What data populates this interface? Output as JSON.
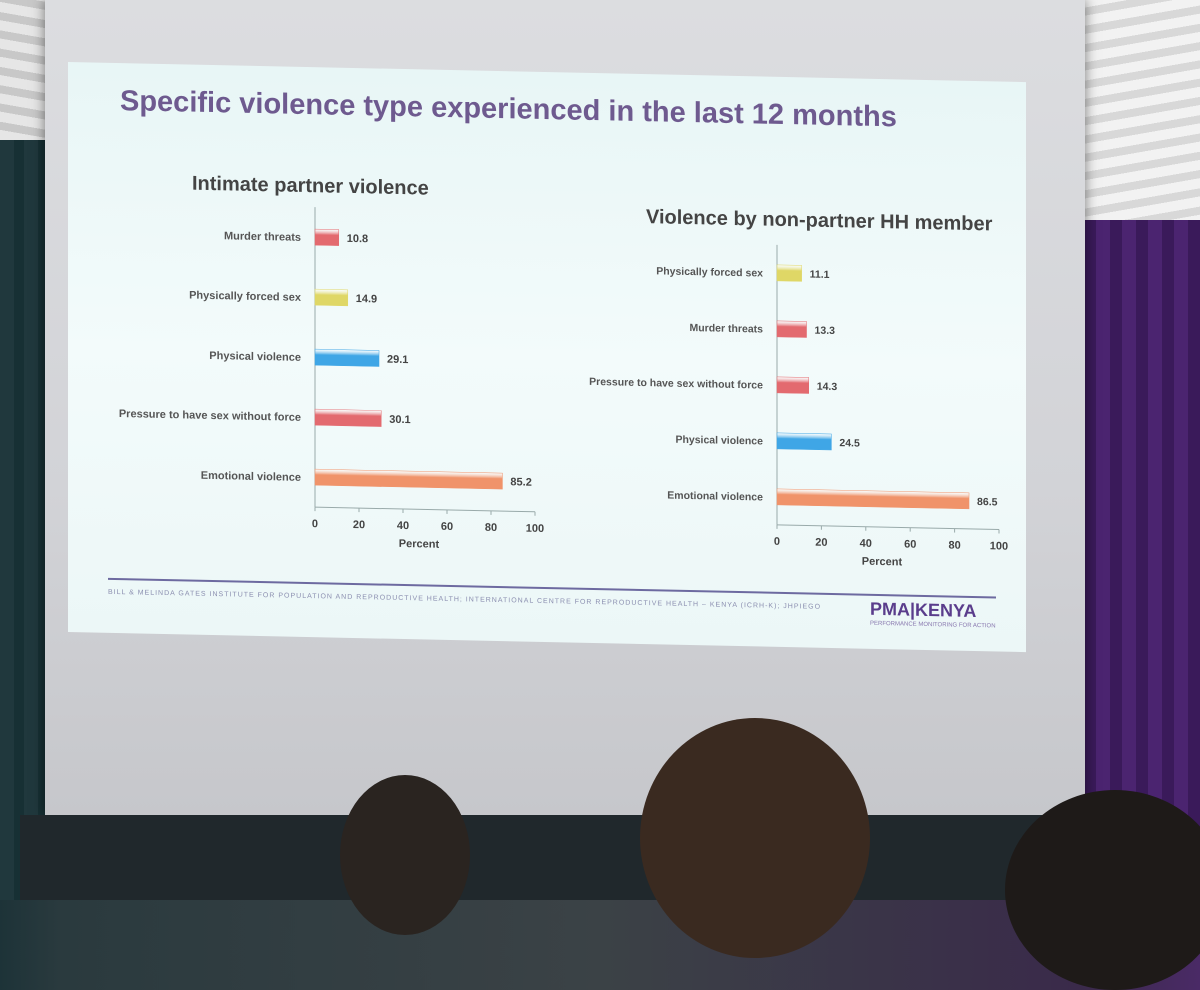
{
  "slide": {
    "title": "Specific violence type experienced in the last 12 months",
    "footer": "BILL & MELINDA GATES INSTITUTE FOR POPULATION AND REPRODUCTIVE HEALTH; INTERNATIONAL CENTRE FOR REPRODUCTIVE HEALTH – KENYA (ICRH-K); JHPIEGO",
    "logo": "PMA|KENYA",
    "logo_tagline": "PERFORMANCE MONITORING FOR ACTION"
  },
  "colors": {
    "red": "#e36a6f",
    "yellow": "#dfd766",
    "blue": "#3fa6e6",
    "orange": "#f0936a"
  },
  "chart_data": [
    {
      "type": "bar",
      "orientation": "horizontal",
      "title": "Intimate partner violence",
      "categories": [
        "Murder threats",
        "Physically forced sex",
        "Physical violence",
        "Pressure to have sex without force",
        "Emotional violence"
      ],
      "values": [
        10.8,
        14.9,
        29.1,
        30.1,
        85.2
      ],
      "value_labels": [
        "10.8",
        "14.9",
        "29.1",
        "30.1",
        "85.2"
      ],
      "bar_colors": [
        "red",
        "yellow",
        "blue",
        "red",
        "orange"
      ],
      "xlabel": "Percent",
      "xlim": [
        0,
        100
      ],
      "xticks": [
        "0",
        "20",
        "40",
        "60",
        "80",
        "100"
      ]
    },
    {
      "type": "bar",
      "orientation": "horizontal",
      "title": "Violence by non-partner HH member",
      "categories": [
        "Physically forced sex",
        "Murder threats",
        "Pressure to have sex without force",
        "Physical violence",
        "Emotional violence"
      ],
      "values": [
        11.1,
        13.3,
        14.3,
        24.5,
        86.5
      ],
      "value_labels": [
        "11.1",
        "13.3",
        "14.3",
        "24.5",
        "86.5"
      ],
      "bar_colors": [
        "yellow",
        "red",
        "red",
        "blue",
        "orange"
      ],
      "xlabel": "Percent",
      "xlim": [
        0,
        100
      ],
      "xticks": [
        "0",
        "20",
        "40",
        "60",
        "80",
        "100"
      ]
    }
  ]
}
